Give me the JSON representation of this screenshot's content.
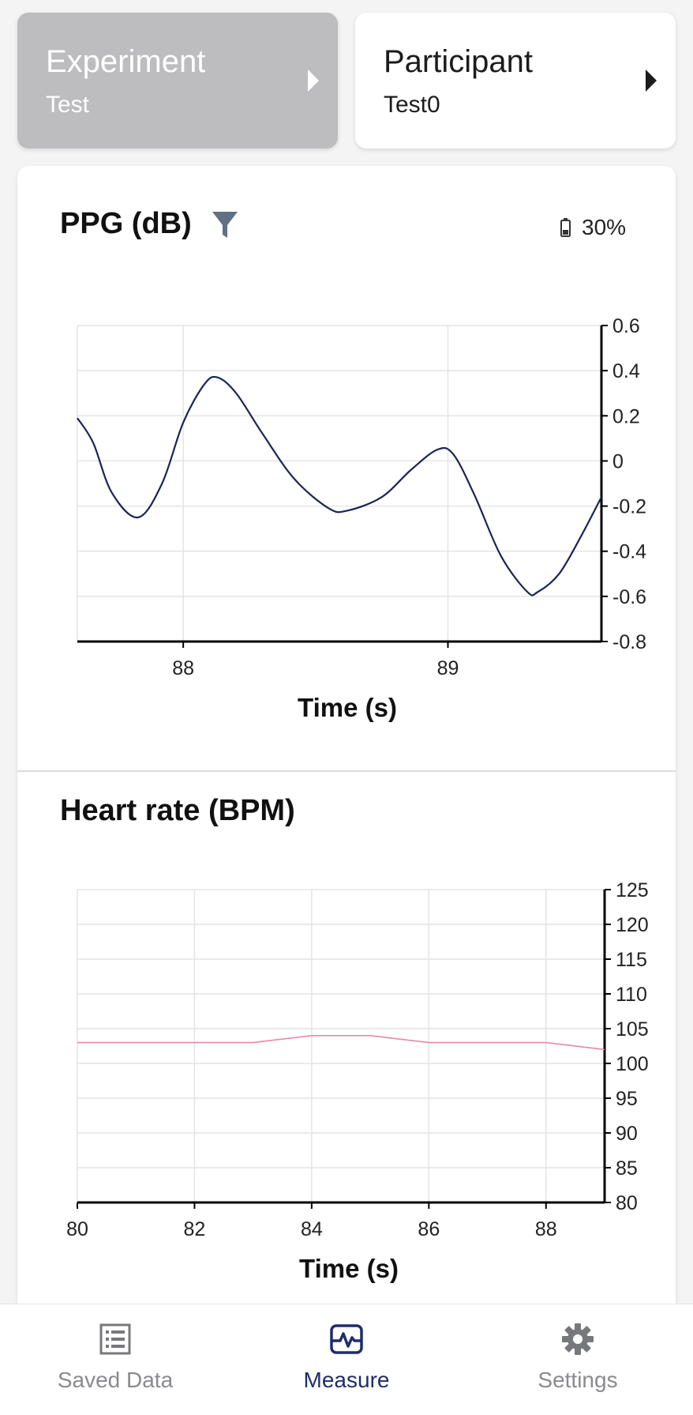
{
  "experiment_card": {
    "title": "Experiment",
    "value": "Test"
  },
  "participant_card": {
    "title": "Participant",
    "value": "Test0"
  },
  "ppg_panel": {
    "title": "PPG (dB)",
    "battery": "30%"
  },
  "hr_panel": {
    "title": "Heart rate (BPM)"
  },
  "colors": {
    "ppg_line": "#1a2456",
    "hr_line": "#e58aa2",
    "accent": "#1f2d6b",
    "inactive": "#8a8a8e"
  },
  "chart_data": [
    {
      "type": "line",
      "name": "ppg",
      "title": "PPG (dB)",
      "xlabel": "Time (s)",
      "ylabel": "",
      "xlim": [
        87.6,
        89.58
      ],
      "ylim": [
        -0.8,
        0.6
      ],
      "x_ticks": [
        88,
        89
      ],
      "y_ticks": [
        0.6,
        0.4,
        0.2,
        0,
        -0.2,
        -0.4,
        -0.6,
        -0.8
      ],
      "y_axis_side": "right",
      "grid": true,
      "series": [
        {
          "x": [
            87.6,
            87.66,
            87.73,
            87.83,
            87.92,
            88.0,
            88.08,
            88.13,
            88.2,
            88.3,
            88.42,
            88.55,
            88.62,
            88.75,
            88.86,
            88.96,
            89.02,
            89.1,
            89.2,
            89.3,
            89.34,
            89.42,
            89.5,
            89.58
          ],
          "y": [
            0.19,
            0.08,
            -0.14,
            -0.25,
            -0.1,
            0.17,
            0.34,
            0.37,
            0.3,
            0.12,
            -0.08,
            -0.21,
            -0.22,
            -0.16,
            -0.04,
            0.05,
            0.03,
            -0.15,
            -0.42,
            -0.58,
            -0.58,
            -0.5,
            -0.34,
            -0.16
          ]
        }
      ]
    },
    {
      "type": "line",
      "name": "heart-rate",
      "title": "Heart rate (BPM)",
      "xlabel": "Time (s)",
      "ylabel": "",
      "xlim": [
        80,
        89
      ],
      "ylim": [
        80,
        125
      ],
      "x_ticks": [
        80,
        82,
        84,
        86,
        88
      ],
      "y_ticks": [
        125,
        120,
        115,
        110,
        105,
        100,
        95,
        90,
        85,
        80
      ],
      "y_axis_side": "right",
      "grid": true,
      "series": [
        {
          "x": [
            80,
            81,
            82,
            83,
            84,
            85,
            86,
            87,
            88,
            89
          ],
          "y": [
            103,
            103,
            103,
            103,
            104,
            104,
            103,
            103,
            103,
            102
          ]
        }
      ]
    }
  ],
  "nav": {
    "saved": {
      "label": "Saved Data",
      "icon": "list-icon"
    },
    "measure": {
      "label": "Measure",
      "icon": "pulse-icon"
    },
    "settings": {
      "label": "Settings",
      "icon": "gear-icon"
    }
  }
}
